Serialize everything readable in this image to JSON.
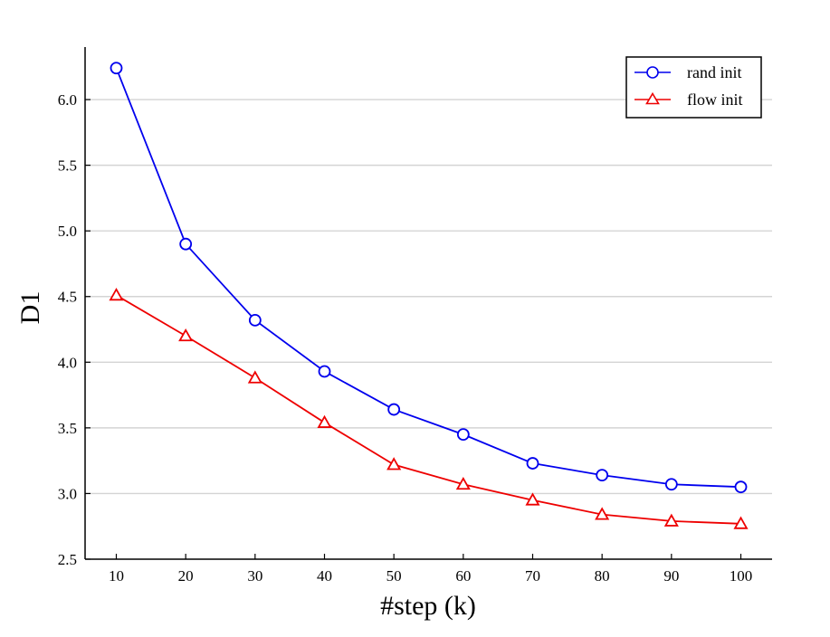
{
  "chart_data": {
    "type": "line",
    "title": "",
    "xlabel": "#step (k)",
    "ylabel": "D1",
    "x": [
      10,
      20,
      30,
      40,
      50,
      60,
      70,
      80,
      90,
      100
    ],
    "xlim": [
      5.5,
      104.5
    ],
    "ylim": [
      2.5,
      6.4
    ],
    "xticks": [
      "10",
      "20",
      "30",
      "40",
      "50",
      "60",
      "70",
      "80",
      "90",
      "100"
    ],
    "yticks": [
      "2.5",
      "3.0",
      "3.5",
      "4.0",
      "4.5",
      "5.0",
      "5.5",
      "6.0"
    ],
    "grid": "horizontal",
    "legend_position": "top-right",
    "series": [
      {
        "name": "rand init",
        "color": "#0000ee",
        "marker": "circle",
        "values": [
          6.24,
          4.9,
          4.32,
          3.93,
          3.64,
          3.45,
          3.23,
          3.14,
          3.07,
          3.05
        ]
      },
      {
        "name": "flow init",
        "color": "#ee0000",
        "marker": "triangle",
        "values": [
          4.51,
          4.2,
          3.88,
          3.54,
          3.22,
          3.07,
          2.95,
          2.84,
          2.79,
          2.77
        ]
      }
    ]
  }
}
